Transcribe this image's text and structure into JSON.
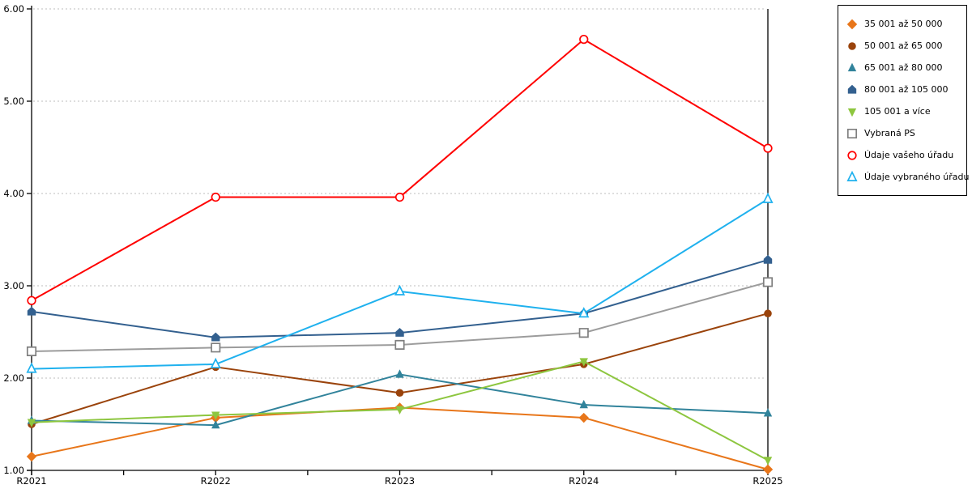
{
  "chart_data": {
    "type": "line",
    "title": "",
    "xlabel": "",
    "ylabel": "",
    "categories": [
      "R2021",
      "R2022",
      "R2023",
      "R2024",
      "R2025"
    ],
    "ylim": [
      1,
      6
    ],
    "y_ticks": [
      "1.00",
      "2.00",
      "3.00",
      "4.00",
      "5.00",
      "6.00"
    ],
    "grid": "horizontal-dotted",
    "grid_color": "#c9c9c9",
    "axis_color": "#000000",
    "legend_position": "outside-top-right",
    "series": [
      {
        "name": "35 001 až 50 000",
        "color": "#E8761A",
        "marker": "diamond",
        "fill": "filled",
        "values": [
          1.15,
          1.57,
          1.68,
          1.57,
          1.01
        ]
      },
      {
        "name": "50 001 až 65 000",
        "color": "#9A430B",
        "marker": "circle",
        "fill": "filled",
        "values": [
          1.5,
          2.12,
          1.84,
          2.15,
          2.7
        ]
      },
      {
        "name": "65 001 až 80 000",
        "color": "#31839B",
        "marker": "triangle-up",
        "fill": "filled",
        "values": [
          1.54,
          1.49,
          2.04,
          1.71,
          1.62
        ]
      },
      {
        "name": "80 001 až 105 000",
        "color": "#33608F",
        "marker": "pentagon",
        "fill": "filled",
        "values": [
          2.72,
          2.44,
          2.49,
          2.7,
          3.28
        ]
      },
      {
        "name": "105 001 a více",
        "color": "#8DC63F",
        "marker": "triangle-down",
        "fill": "filled",
        "values": [
          1.52,
          1.6,
          1.66,
          2.18,
          1.11
        ]
      },
      {
        "name": "Vybraná PS",
        "color": "#9C9C9C",
        "marker": "square",
        "fill": "open",
        "marker_color": "#7F7F7F",
        "values": [
          2.29,
          2.33,
          2.36,
          2.49,
          3.04
        ]
      },
      {
        "name": "Údaje vašeho úřadu",
        "color": "#FF0000",
        "marker": "circle",
        "fill": "open",
        "values": [
          2.84,
          3.96,
          3.96,
          5.67,
          4.49
        ]
      },
      {
        "name": "Údaje vybraného úřadu",
        "color": "#1FB1EE",
        "marker": "triangle-up",
        "fill": "open",
        "values": [
          2.1,
          2.15,
          2.94,
          2.7,
          3.94
        ]
      }
    ]
  }
}
